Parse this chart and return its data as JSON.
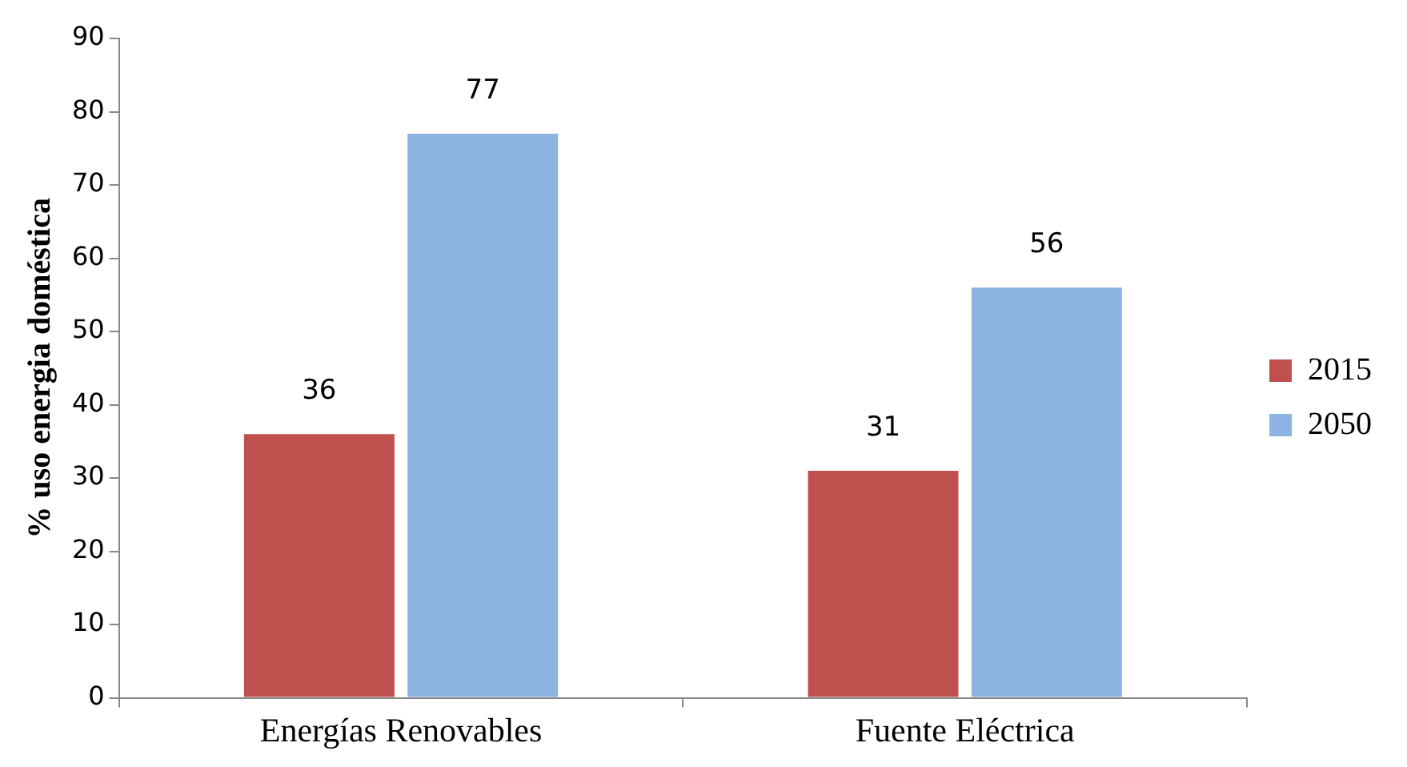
{
  "chart_data": {
    "type": "bar",
    "ylabel": "% uso energia doméstica",
    "categories": [
      "Energías Renovables",
      "Fuente Eléctrica"
    ],
    "series": [
      {
        "name": "2015",
        "color": "#c0504d",
        "values": [
          36,
          31
        ]
      },
      {
        "name": "2050",
        "color": "#8db3e2",
        "values": [
          77,
          56
        ]
      }
    ],
    "ylim": [
      0,
      90
    ],
    "yticks": [
      0,
      10,
      20,
      30,
      40,
      50,
      60,
      70,
      80,
      90
    ],
    "grid": false,
    "legend": "right",
    "data_labels": true
  }
}
